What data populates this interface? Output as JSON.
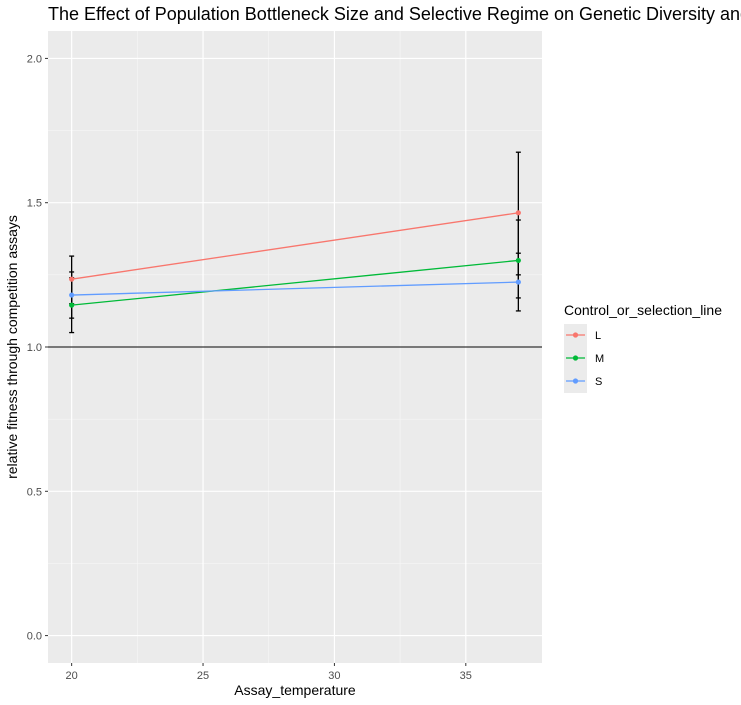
{
  "chart_data": {
    "type": "line",
    "title": "The Effect of Population Bottleneck Size and Selective Regime on Genetic Diversity and",
    "xlabel": "Assay_temperature",
    "ylabel": "relative fitness through competition assays",
    "xlim": [
      19.1,
      37.9
    ],
    "ylim": [
      -0.095,
      2.095
    ],
    "x_ticks": [
      20,
      25,
      30,
      35
    ],
    "y_ticks": [
      0.0,
      0.5,
      1.0,
      1.5,
      2.0
    ],
    "x_tick_labels": [
      "20",
      "25",
      "30",
      "35"
    ],
    "y_tick_labels": [
      "0.0",
      "0.5",
      "1.0",
      "1.5",
      "2.0"
    ],
    "hline": 1.0,
    "grid": true,
    "legend": {
      "title": "Control_or_selection_line",
      "position": "right"
    },
    "series": [
      {
        "name": "L",
        "color": "#F8766D",
        "points": [
          {
            "x": 20,
            "y": 1.235,
            "ymin": 1.15,
            "ymax": 1.315
          },
          {
            "x": 37,
            "y": 1.465,
            "ymin": 1.25,
            "ymax": 1.675
          }
        ]
      },
      {
        "name": "M",
        "color": "#00BA38",
        "points": [
          {
            "x": 20,
            "y": 1.145,
            "ymin": 1.05,
            "ymax": 1.24
          },
          {
            "x": 37,
            "y": 1.3,
            "ymin": 1.17,
            "ymax": 1.44
          }
        ]
      },
      {
        "name": "S",
        "color": "#619CFF",
        "points": [
          {
            "x": 20,
            "y": 1.18,
            "ymin": 1.1,
            "ymax": 1.26
          },
          {
            "x": 37,
            "y": 1.225,
            "ymin": 1.125,
            "ymax": 1.325
          }
        ]
      }
    ]
  }
}
